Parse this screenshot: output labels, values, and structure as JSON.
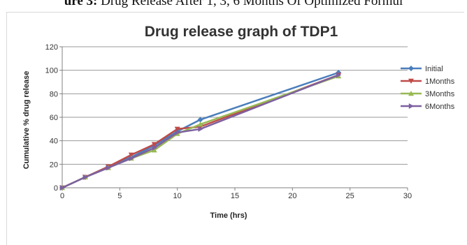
{
  "caption": {
    "prefix": "ure 3:",
    "text": " Drug Release After 1, 3, 6 Months Of Optimized Formul"
  },
  "chart_data": {
    "type": "line",
    "title": "Drug release graph of  TDP1",
    "xlabel": "Time (hrs)",
    "ylabel": "Cumulative % drug release",
    "xlim": [
      0,
      30
    ],
    "ylim": [
      0,
      120
    ],
    "x_ticks": [
      0,
      5,
      10,
      15,
      20,
      25,
      30
    ],
    "y_ticks": [
      0,
      20,
      40,
      60,
      80,
      100,
      120
    ],
    "grid": "horizontal",
    "legend_position": "right",
    "series": [
      {
        "name": "Initial",
        "color": "#4a7ebb",
        "marker": "diamond",
        "points": [
          [
            0,
            0
          ],
          [
            2,
            9
          ],
          [
            4,
            18
          ],
          [
            6,
            26
          ],
          [
            8,
            36
          ],
          [
            10,
            48
          ],
          [
            12,
            58
          ],
          [
            24,
            98
          ]
        ]
      },
      {
        "name": "1Months",
        "color": "#be4b48",
        "marker": "triangle-down",
        "points": [
          [
            0,
            0
          ],
          [
            2,
            9
          ],
          [
            4,
            18
          ],
          [
            6,
            28
          ],
          [
            8,
            37
          ],
          [
            10,
            50
          ],
          [
            12,
            52
          ],
          [
            24,
            96
          ]
        ]
      },
      {
        "name": "3Months",
        "color": "#98b954",
        "marker": "triangle-up",
        "points": [
          [
            0,
            0
          ],
          [
            2,
            9
          ],
          [
            4,
            17
          ],
          [
            6,
            25
          ],
          [
            8,
            32
          ],
          [
            10,
            46
          ],
          [
            12,
            54
          ],
          [
            24,
            95
          ]
        ]
      },
      {
        "name": "6Months",
        "color": "#7d60a0",
        "marker": "triangle-right",
        "points": [
          [
            0,
            0
          ],
          [
            2,
            9
          ],
          [
            4,
            17
          ],
          [
            6,
            25
          ],
          [
            8,
            34
          ],
          [
            10,
            47
          ],
          [
            12,
            50
          ],
          [
            24,
            96
          ]
        ]
      }
    ]
  }
}
